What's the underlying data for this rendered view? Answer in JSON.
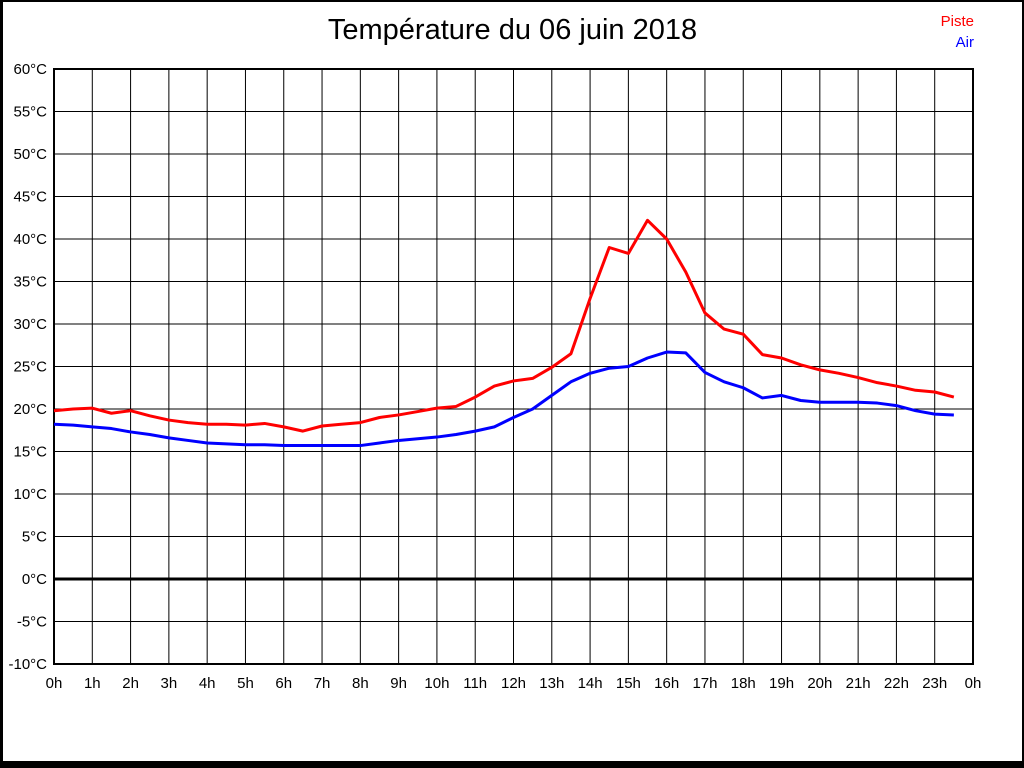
{
  "page": {
    "title": "Température du 06 juin 2018"
  },
  "legend": {
    "items": [
      {
        "label": "Piste",
        "color": "#ff0000"
      },
      {
        "label": "Air",
        "color": "#0000ff"
      }
    ]
  },
  "chart_data": {
    "type": "line",
    "title": "Température du 06 juin 2018",
    "grid": true,
    "legend_position": "top-right",
    "xlim": [
      0,
      24
    ],
    "ylim": [
      -10,
      60
    ],
    "y_tick_step": 5,
    "y_tick_suffix": "°C",
    "y_tick_labels": [
      "60°C",
      "55°C",
      "50°C",
      "45°C",
      "40°C",
      "35°C",
      "30°C",
      "25°C",
      "20°C",
      "15°C",
      "10°C",
      "5°C",
      "0°C",
      "-5°C",
      "-10°C"
    ],
    "x_tick_labels": [
      "0h",
      "1h",
      "2h",
      "3h",
      "4h",
      "5h",
      "6h",
      "7h",
      "8h",
      "9h",
      "10h",
      "11h",
      "12h",
      "13h",
      "14h",
      "15h",
      "16h",
      "17h",
      "18h",
      "19h",
      "20h",
      "21h",
      "22h",
      "23h",
      "0h"
    ],
    "zero_line": true,
    "x": [
      0,
      0.5,
      1,
      1.5,
      2,
      2.5,
      3,
      3.5,
      4,
      4.5,
      5,
      5.5,
      6,
      6.5,
      7,
      7.5,
      8,
      8.5,
      9,
      9.5,
      10,
      10.5,
      11,
      11.5,
      12,
      12.5,
      13,
      13.5,
      14,
      14.5,
      15,
      15.5,
      16,
      16.5,
      17,
      17.5,
      18,
      18.5,
      19,
      19.5,
      20,
      20.5,
      21,
      21.5,
      22,
      22.5,
      23,
      23.5
    ],
    "series": [
      {
        "name": "Piste",
        "color": "#ff0000",
        "values": [
          19.8,
          20.0,
          20.1,
          19.5,
          19.8,
          19.2,
          18.7,
          18.4,
          18.2,
          18.2,
          18.1,
          18.3,
          17.9,
          17.4,
          18.0,
          18.2,
          18.4,
          19.0,
          19.3,
          19.7,
          20.1,
          20.3,
          21.4,
          22.7,
          23.3,
          23.6,
          24.9,
          26.5,
          33.0,
          39.0,
          38.3,
          42.2,
          40.0,
          36.1,
          31.3,
          29.4,
          28.8,
          26.4,
          26.0,
          25.2,
          24.6,
          24.2,
          23.7,
          23.1,
          22.7,
          22.2,
          22.0,
          21.4
        ]
      },
      {
        "name": "Air",
        "color": "#0000ff",
        "values": [
          18.2,
          18.1,
          17.9,
          17.7,
          17.3,
          17.0,
          16.6,
          16.3,
          16.0,
          15.9,
          15.8,
          15.8,
          15.7,
          15.7,
          15.7,
          15.7,
          15.7,
          16.0,
          16.3,
          16.5,
          16.7,
          17.0,
          17.4,
          17.9,
          19.0,
          20.0,
          21.6,
          23.2,
          24.2,
          24.8,
          25.0,
          26.0,
          26.7,
          26.6,
          24.3,
          23.2,
          22.5,
          21.3,
          21.6,
          21.0,
          20.8,
          20.8,
          20.8,
          20.7,
          20.4,
          19.8,
          19.4,
          19.3
        ]
      }
    ]
  }
}
